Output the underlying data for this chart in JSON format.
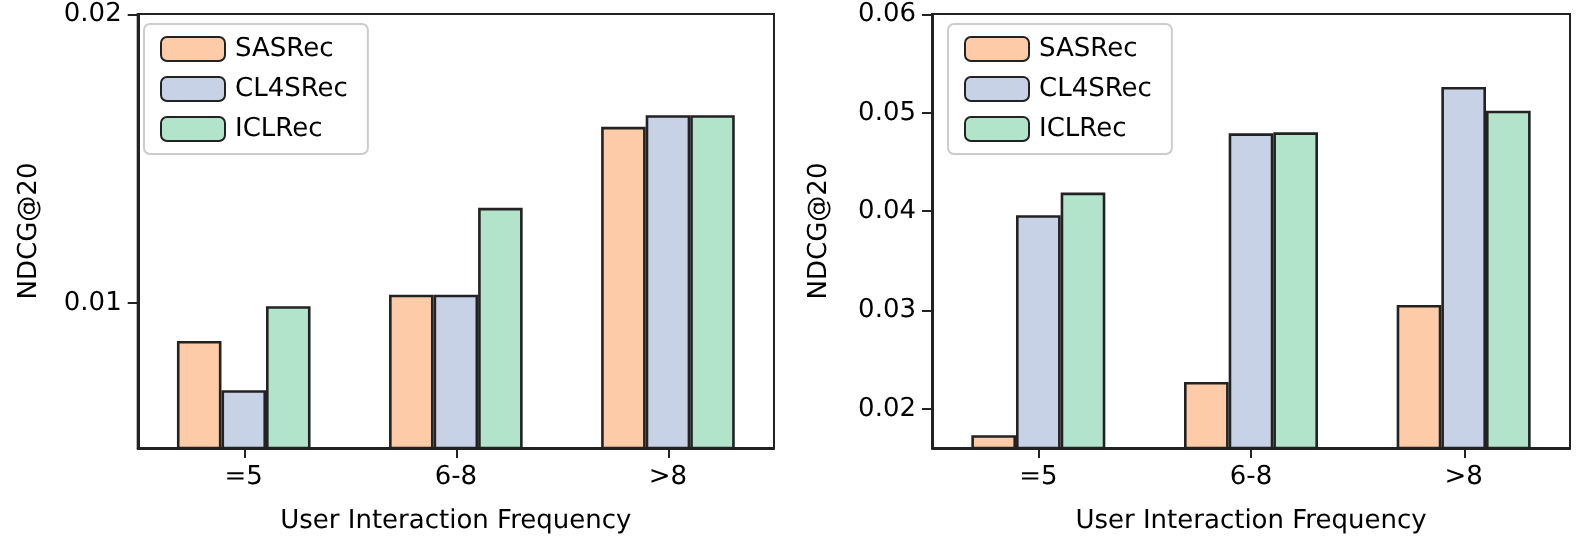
{
  "chart_data": [
    {
      "type": "bar",
      "xlabel": "User Interaction Frequency",
      "ylabel": "NDCG@20",
      "categories": [
        "=5",
        "6-8",
        ">8"
      ],
      "ylim": [
        0.005,
        0.02
      ],
      "yticks": [
        0.01,
        0.02
      ],
      "grid": false,
      "legend": "top left",
      "series": [
        {
          "name": "SASRec",
          "color": "#fdcba7",
          "values": [
            0.0087,
            0.0103,
            0.0161
          ]
        },
        {
          "name": "CL4SRec",
          "color": "#c8d2e6",
          "values": [
            0.007,
            0.0103,
            0.0165
          ]
        },
        {
          "name": "ICLRec",
          "color": "#b2e3cb",
          "values": [
            0.0099,
            0.0133,
            0.0165
          ]
        }
      ]
    },
    {
      "type": "bar",
      "xlabel": "User Interaction Frequency",
      "ylabel": "NDCG@20",
      "categories": [
        "=5",
        "6-8",
        ">8"
      ],
      "ylim": [
        0.016,
        0.06
      ],
      "yticks": [
        0.02,
        0.03,
        0.04,
        0.05,
        0.06
      ],
      "grid": false,
      "legend": "top left",
      "series": [
        {
          "name": "SASRec",
          "color": "#fdcba7",
          "values": [
            0.0173,
            0.0227,
            0.0305
          ]
        },
        {
          "name": "CL4SRec",
          "color": "#c8d2e6",
          "values": [
            0.0396,
            0.0479,
            0.0526
          ]
        },
        {
          "name": "ICLRec",
          "color": "#b2e3cb",
          "values": [
            0.0419,
            0.048,
            0.0502
          ]
        }
      ]
    }
  ]
}
